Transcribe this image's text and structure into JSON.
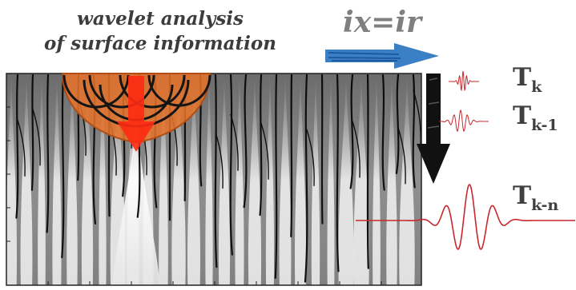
{
  "caption": {
    "line1": "wavelet analysis",
    "line2": "of surface information"
  },
  "formula": "ix=ir",
  "terms": [
    {
      "base": "T",
      "sub": "k"
    },
    {
      "base": "T",
      "sub": "k-1"
    },
    {
      "base": "T",
      "sub": "k-n"
    }
  ],
  "colors": {
    "arrow_blue": "#3b7fc4",
    "arrow_red": "#ff2a12",
    "cone_orange": "#e8732a",
    "wavelet_red": "#c8272d",
    "label_gray": "#3f3f3f"
  }
}
